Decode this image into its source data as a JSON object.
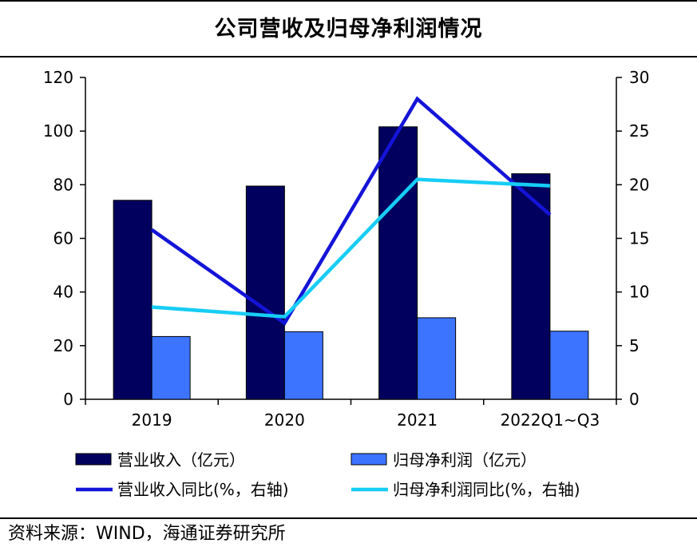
{
  "header": {
    "title": "公司营收及归母净利润情况"
  },
  "footer": {
    "source_label": "资料来源：",
    "source_text": "WIND，海通证券研究所"
  },
  "colors": {
    "revenue_bar": "#02005e",
    "profit_bar": "#3c73ff",
    "revenue_growth_line": "#1414d8",
    "profit_growth_line": "#16cdf5",
    "axis": "#000000"
  },
  "chart_data": {
    "type": "bar",
    "title": "公司营收及归母净利润情况",
    "categories": [
      "2019",
      "2020",
      "2021",
      "2022Q1~Q3"
    ],
    "y_left": {
      "ylim": [
        0,
        120
      ],
      "ticks": [
        0,
        20,
        40,
        60,
        80,
        100,
        120
      ]
    },
    "y_right": {
      "ylim": [
        0,
        30
      ],
      "ticks": [
        0,
        5,
        10,
        15,
        20,
        25,
        30
      ]
    },
    "series": [
      {
        "name": "营业收入（亿元）",
        "kind": "bar",
        "axis": "left",
        "color": "#02005e",
        "values": [
          74.2,
          79.5,
          101.6,
          84.1
        ]
      },
      {
        "name": "归母净利润（亿元）",
        "kind": "bar",
        "axis": "left",
        "color": "#3c73ff",
        "values": [
          23.4,
          25.2,
          30.4,
          25.4
        ]
      },
      {
        "name": "营业收入同比(%，右轴)",
        "kind": "line",
        "axis": "right",
        "color": "#1414d8",
        "values": [
          15.8,
          7.1,
          28.0,
          17.2
        ]
      },
      {
        "name": "归母净利润同比(%，右轴)",
        "kind": "line",
        "axis": "right",
        "color": "#16cdf5",
        "values": [
          8.6,
          7.7,
          20.5,
          19.9
        ]
      }
    ],
    "grid": false,
    "legend_position": "bottom"
  }
}
